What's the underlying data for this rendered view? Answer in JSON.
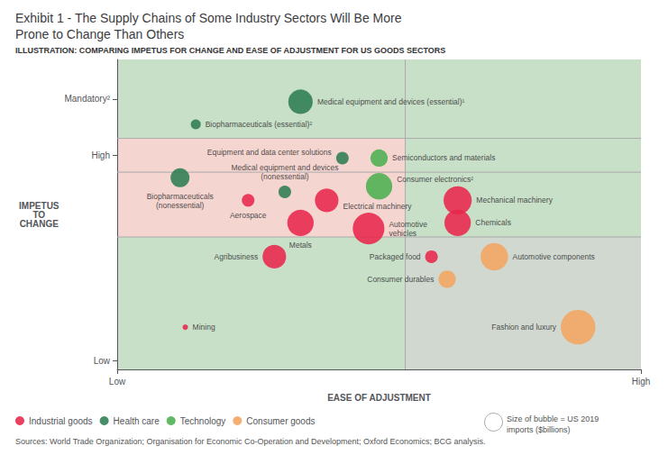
{
  "chart_data": {
    "type": "scatter",
    "title": "Exhibit 1 - The Supply Chains of Some Industry Sectors Will Be More\nProne to Change Than Others",
    "subtitle": "ILLUSTRATION: COMPARING IMPETUS FOR CHANGE AND EASE OF ADJUSTMENT FOR US GOODS SECTORS",
    "xlabel": "EASE OF ADJUSTMENT",
    "ylabel": "IMPETUS\nTO\nCHANGE",
    "xlim": [
      0,
      10
    ],
    "ylim": [
      0,
      11
    ],
    "xticks": [
      {
        "value": 0,
        "label": "Low"
      },
      {
        "value": 10,
        "label": "High"
      }
    ],
    "yticks": [
      {
        "value": 0.3,
        "label": "Low"
      },
      {
        "value": 7.6,
        "label": "High"
      },
      {
        "value": 9.6,
        "label": "Mandatory²"
      }
    ],
    "grid": false,
    "legend": "bottom",
    "series": [
      {
        "name": "Industrial goods",
        "color": "#e8274b",
        "x": [
          2.5,
          4.0,
          3.5,
          4.8,
          6.5,
          6.5,
          3.0,
          6.0,
          1.3
        ],
        "y": [
          6.0,
          6.0,
          5.2,
          5.0,
          6.0,
          5.2,
          4.0,
          4.0,
          1.5
        ],
        "sizes": [
          80,
          280,
          350,
          500,
          400,
          350,
          280,
          80,
          15
        ],
        "labels": [
          "Aerospace",
          "Electrical machinery",
          "Metals",
          "Automotive\nvehicles",
          "Mechanical machinery",
          "Chemicals",
          "Agribusiness",
          "Packaged food",
          "Mining"
        ]
      },
      {
        "name": "Health care",
        "color": "#2e7d52",
        "x": [
          3.5,
          1.5,
          1.2,
          3.2,
          4.3
        ],
        "y": [
          9.5,
          8.7,
          6.8,
          6.3,
          7.5
        ],
        "sizes": [
          300,
          50,
          180,
          80,
          80
        ],
        "labels": [
          "Medical equipment and devices (essential)¹",
          "Biopharmaceuticals (essential)²",
          "Biopharmaceuticals\n(nonessential)",
          "Medical equipment and devices\n(nonessential)",
          "Equipment and data center solutions"
        ]
      },
      {
        "name": "Technology",
        "color": "#4caf50",
        "x": [
          5.0,
          5.0
        ],
        "y": [
          7.5,
          6.5
        ],
        "sizes": [
          150,
          350
        ],
        "labels": [
          "Semiconductors and materials",
          "Consumer electronics²"
        ]
      },
      {
        "name": "Consumer goods",
        "color": "#f4a460",
        "x": [
          7.2,
          6.3,
          8.8
        ],
        "y": [
          4.0,
          3.2,
          1.5
        ],
        "sizes": [
          380,
          150,
          600
        ],
        "labels": [
          "Automotive components",
          "Consumer durables",
          "Fashion and luxury"
        ]
      }
    ],
    "regions": [
      {
        "xlim": [
          0,
          10
        ],
        "ylim": [
          8.2,
          11
        ],
        "color": "#c8dfc8"
      },
      {
        "xlim": [
          0,
          5.5
        ],
        "ylim": [
          7,
          8.2
        ],
        "color": "#f5d5d0"
      },
      {
        "xlim": [
          5.5,
          10
        ],
        "ylim": [
          7,
          8.2
        ],
        "color": "#c8dfc8"
      },
      {
        "xlim": [
          0,
          5.5
        ],
        "ylim": [
          4.7,
          7
        ],
        "color": "#f5d5d0"
      },
      {
        "xlim": [
          5.5,
          10
        ],
        "ylim": [
          4.7,
          7
        ],
        "color": "#c8dfc8"
      },
      {
        "xlim": [
          0,
          5.5
        ],
        "ylim": [
          0,
          4.7
        ],
        "color": "#c8dfc8"
      },
      {
        "xlim": [
          5.5,
          10
        ],
        "ylim": [
          0,
          4.7
        ],
        "color": "#d0d8d0"
      }
    ],
    "dividers": {
      "y": [
        8.2,
        7,
        4.7
      ],
      "x": [
        5.5
      ],
      "color": "#aaaaaa"
    },
    "size_note": "Size of bubble = US 2019\nimports ($billions)",
    "source": "Sources: World Trade Organization; Organisation for Economic Co-Operation and Development; Oxford Economics; BCG analysis."
  }
}
